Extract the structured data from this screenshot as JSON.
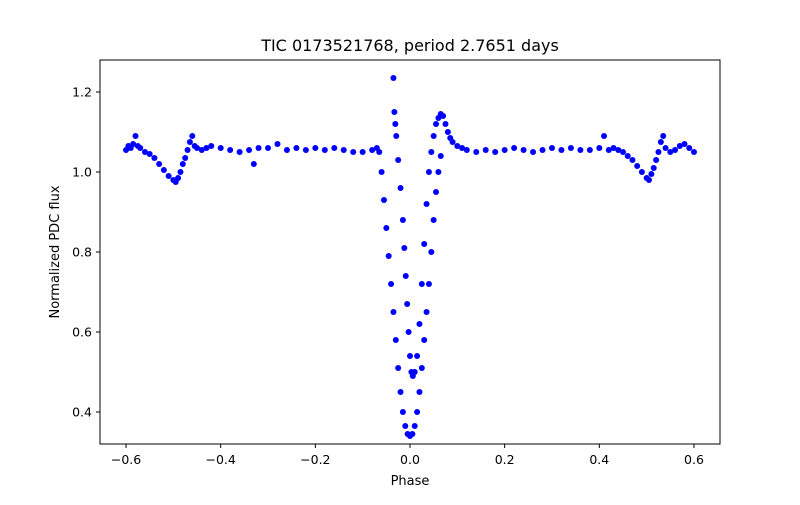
{
  "chart_data": {
    "type": "scatter",
    "title": "TIC 0173521768, period 2.7651 days",
    "xlabel": "Phase",
    "ylabel": "Normalized PDC flux",
    "xlim": [
      -0.655,
      0.655
    ],
    "ylim": [
      0.32,
      1.28
    ],
    "xticks": [
      -0.6,
      -0.4,
      -0.2,
      0.0,
      0.2,
      0.4,
      0.6
    ],
    "xtick_labels": [
      "−0.6",
      "−0.4",
      "−0.2",
      "0.0",
      "0.2",
      "0.4",
      "0.6"
    ],
    "yticks": [
      0.4,
      0.6,
      0.8,
      1.0,
      1.2
    ],
    "ytick_labels": [
      "0.4",
      "0.6",
      "0.8",
      "1.0",
      "1.2"
    ],
    "grid": false,
    "marker_color": "#0000ff",
    "series": [
      {
        "points": [
          [
            -0.6,
            1.055
          ],
          [
            -0.595,
            1.065
          ],
          [
            -0.59,
            1.06
          ],
          [
            -0.585,
            1.07
          ],
          [
            -0.58,
            1.09
          ],
          [
            -0.575,
            1.065
          ],
          [
            -0.57,
            1.06
          ],
          [
            -0.56,
            1.05
          ],
          [
            -0.55,
            1.045
          ],
          [
            -0.54,
            1.035
          ],
          [
            -0.53,
            1.02
          ],
          [
            -0.52,
            1.005
          ],
          [
            -0.51,
            0.99
          ],
          [
            -0.5,
            0.98
          ],
          [
            -0.495,
            0.975
          ],
          [
            -0.49,
            0.985
          ],
          [
            -0.485,
            1.0
          ],
          [
            -0.48,
            1.02
          ],
          [
            -0.475,
            1.035
          ],
          [
            -0.47,
            1.055
          ],
          [
            -0.465,
            1.075
          ],
          [
            -0.46,
            1.09
          ],
          [
            -0.455,
            1.065
          ],
          [
            -0.45,
            1.06
          ],
          [
            -0.44,
            1.055
          ],
          [
            -0.43,
            1.06
          ],
          [
            -0.42,
            1.065
          ],
          [
            -0.4,
            1.06
          ],
          [
            -0.38,
            1.055
          ],
          [
            -0.36,
            1.05
          ],
          [
            -0.34,
            1.055
          ],
          [
            -0.33,
            1.02
          ],
          [
            -0.32,
            1.06
          ],
          [
            -0.3,
            1.06
          ],
          [
            -0.28,
            1.07
          ],
          [
            -0.26,
            1.055
          ],
          [
            -0.24,
            1.06
          ],
          [
            -0.22,
            1.055
          ],
          [
            -0.2,
            1.06
          ],
          [
            -0.18,
            1.055
          ],
          [
            -0.16,
            1.06
          ],
          [
            -0.14,
            1.055
          ],
          [
            -0.12,
            1.05
          ],
          [
            -0.1,
            1.05
          ],
          [
            -0.08,
            1.055
          ],
          [
            -0.07,
            1.06
          ],
          [
            -0.065,
            1.05
          ],
          [
            -0.06,
            1.0
          ],
          [
            -0.055,
            0.93
          ],
          [
            -0.05,
            0.86
          ],
          [
            -0.045,
            0.79
          ],
          [
            -0.04,
            0.72
          ],
          [
            -0.035,
            0.65
          ],
          [
            -0.03,
            0.58
          ],
          [
            -0.025,
            0.51
          ],
          [
            -0.02,
            0.45
          ],
          [
            -0.015,
            0.4
          ],
          [
            -0.01,
            0.365
          ],
          [
            -0.005,
            0.345
          ],
          [
            0.0,
            0.34
          ],
          [
            0.005,
            0.345
          ],
          [
            0.01,
            0.365
          ],
          [
            0.015,
            0.4
          ],
          [
            0.02,
            0.45
          ],
          [
            0.025,
            0.51
          ],
          [
            0.03,
            0.58
          ],
          [
            0.035,
            0.65
          ],
          [
            0.04,
            0.72
          ],
          [
            0.045,
            0.8
          ],
          [
            0.05,
            0.88
          ],
          [
            0.055,
            0.95
          ],
          [
            0.06,
            1.0
          ],
          [
            0.065,
            1.04
          ],
          [
            -0.035,
            1.235
          ],
          [
            -0.033,
            1.15
          ],
          [
            -0.031,
            1.12
          ],
          [
            -0.029,
            1.09
          ],
          [
            -0.025,
            1.03
          ],
          [
            -0.02,
            0.96
          ],
          [
            -0.015,
            0.88
          ],
          [
            -0.012,
            0.81
          ],
          [
            -0.009,
            0.74
          ],
          [
            -0.006,
            0.67
          ],
          [
            -0.003,
            0.6
          ],
          [
            0.0,
            0.54
          ],
          [
            0.003,
            0.5
          ],
          [
            0.006,
            0.49
          ],
          [
            0.01,
            0.5
          ],
          [
            0.015,
            0.54
          ],
          [
            0.02,
            0.62
          ],
          [
            0.025,
            0.72
          ],
          [
            0.03,
            0.82
          ],
          [
            0.035,
            0.92
          ],
          [
            0.04,
            1.0
          ],
          [
            0.045,
            1.05
          ],
          [
            0.05,
            1.09
          ],
          [
            0.055,
            1.12
          ],
          [
            0.06,
            1.135
          ],
          [
            0.065,
            1.145
          ],
          [
            0.07,
            1.14
          ],
          [
            0.075,
            1.12
          ],
          [
            0.08,
            1.1
          ],
          [
            0.085,
            1.085
          ],
          [
            0.09,
            1.075
          ],
          [
            0.1,
            1.065
          ],
          [
            0.11,
            1.06
          ],
          [
            0.12,
            1.055
          ],
          [
            0.14,
            1.05
          ],
          [
            0.16,
            1.055
          ],
          [
            0.18,
            1.05
          ],
          [
            0.2,
            1.055
          ],
          [
            0.22,
            1.06
          ],
          [
            0.24,
            1.055
          ],
          [
            0.26,
            1.05
          ],
          [
            0.28,
            1.055
          ],
          [
            0.3,
            1.06
          ],
          [
            0.32,
            1.055
          ],
          [
            0.34,
            1.06
          ],
          [
            0.36,
            1.055
          ],
          [
            0.38,
            1.055
          ],
          [
            0.4,
            1.06
          ],
          [
            0.41,
            1.09
          ],
          [
            0.42,
            1.055
          ],
          [
            0.43,
            1.06
          ],
          [
            0.44,
            1.055
          ],
          [
            0.45,
            1.05
          ],
          [
            0.46,
            1.04
          ],
          [
            0.47,
            1.03
          ],
          [
            0.48,
            1.015
          ],
          [
            0.49,
            1.0
          ],
          [
            0.5,
            0.985
          ],
          [
            0.505,
            0.98
          ],
          [
            0.51,
            0.995
          ],
          [
            0.515,
            1.01
          ],
          [
            0.52,
            1.03
          ],
          [
            0.525,
            1.05
          ],
          [
            0.53,
            1.075
          ],
          [
            0.535,
            1.09
          ],
          [
            0.54,
            1.06
          ],
          [
            0.55,
            1.05
          ],
          [
            0.56,
            1.055
          ],
          [
            0.57,
            1.065
          ],
          [
            0.58,
            1.07
          ],
          [
            0.59,
            1.06
          ],
          [
            0.6,
            1.05
          ]
        ]
      }
    ]
  }
}
